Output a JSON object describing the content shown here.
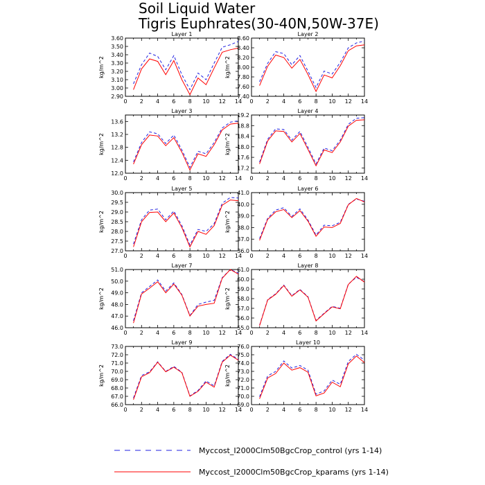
{
  "title_line1": "Soil Liquid Water",
  "title_line2": "Tigris Euphrates(30-40N,50W-37E)",
  "legend": {
    "series1": "Myccost_I2000Clm50BgcCrop_control (yrs 1-14)",
    "series2": "Myccost_I2000Clm50BgcCrop_kparams (yrs 1-14)"
  },
  "colors": {
    "control": "#1f1fe0",
    "kparams": "#ff0000"
  },
  "chart_data": [
    {
      "type": "line",
      "title": "Layer 1",
      "ylabel": "kg/m^2",
      "xlim": [
        0,
        14
      ],
      "ylim": [
        2.9,
        3.6
      ],
      "xticks": [
        0,
        2,
        4,
        6,
        8,
        10,
        12,
        14
      ],
      "yticks": [
        "2.90",
        "3.00",
        "3.10",
        "3.20",
        "3.30",
        "3.40",
        "3.50",
        "3.60"
      ],
      "x": [
        1,
        2,
        3,
        4,
        5,
        6,
        7,
        8,
        9,
        10,
        11,
        12,
        13,
        14
      ],
      "series": [
        {
          "name": "Myccost_I2000Clm50BgcCrop_control (yrs 1-14)",
          "values": [
            3.05,
            3.28,
            3.42,
            3.38,
            3.22,
            3.39,
            3.16,
            2.98,
            3.18,
            3.1,
            3.3,
            3.49,
            3.52,
            3.56
          ]
        },
        {
          "name": "Myccost_I2000Clm50BgcCrop_kparams (yrs 1-14)",
          "values": [
            2.98,
            3.23,
            3.35,
            3.32,
            3.16,
            3.33,
            3.1,
            2.92,
            3.12,
            3.04,
            3.24,
            3.43,
            3.46,
            3.48
          ]
        }
      ]
    },
    {
      "type": "line",
      "title": "Layer 2",
      "ylabel": "kg/m^2",
      "xlim": [
        0,
        14
      ],
      "ylim": [
        7.4,
        8.6
      ],
      "xticks": [
        0,
        2,
        4,
        6,
        8,
        10,
        12,
        14
      ],
      "yticks": [
        "7.40",
        "7.60",
        "7.80",
        "8.00",
        "8.20",
        "8.40",
        "8.60"
      ],
      "x": [
        1,
        2,
        3,
        4,
        5,
        6,
        7,
        8,
        9,
        10,
        11,
        12,
        13,
        14
      ],
      "series": [
        {
          "name": "Myccost_I2000Clm50BgcCrop_control (yrs 1-14)",
          "values": [
            7.7,
            8.08,
            8.32,
            8.28,
            8.05,
            8.24,
            7.92,
            7.58,
            7.92,
            7.86,
            8.1,
            8.4,
            8.5,
            8.54
          ]
        },
        {
          "name": "Myccost_I2000Clm50BgcCrop_kparams (yrs 1-14)",
          "values": [
            7.62,
            8.02,
            8.25,
            8.2,
            7.98,
            8.16,
            7.85,
            7.5,
            7.84,
            7.78,
            8.03,
            8.34,
            8.44,
            8.46
          ]
        }
      ]
    },
    {
      "type": "line",
      "title": "Layer 3",
      "ylabel": "kg/m^2",
      "xlim": [
        0,
        14
      ],
      "ylim": [
        12.0,
        13.8
      ],
      "xticks": [
        0,
        2,
        4,
        6,
        8,
        10,
        12,
        14
      ],
      "yticks": [
        "12.0",
        "12.4",
        "12.8",
        "13.2",
        "13.6"
      ],
      "x": [
        1,
        2,
        3,
        4,
        5,
        6,
        7,
        8,
        9,
        10,
        11,
        12,
        13,
        14
      ],
      "series": [
        {
          "name": "Myccost_I2000Clm50BgcCrop_control (yrs 1-14)",
          "values": [
            12.35,
            12.95,
            13.28,
            13.22,
            12.92,
            13.18,
            12.72,
            12.18,
            12.68,
            12.6,
            12.95,
            13.4,
            13.58,
            13.62
          ]
        },
        {
          "name": "Myccost_I2000Clm50BgcCrop_kparams (yrs 1-14)",
          "values": [
            12.28,
            12.88,
            13.18,
            13.15,
            12.85,
            13.1,
            12.65,
            12.1,
            12.6,
            12.52,
            12.88,
            13.34,
            13.52,
            13.55
          ]
        }
      ]
    },
    {
      "type": "line",
      "title": "Layer 4",
      "ylabel": "kg/m^2",
      "xlim": [
        0,
        14
      ],
      "ylim": [
        17.0,
        19.2
      ],
      "xticks": [
        0,
        2,
        4,
        6,
        8,
        10,
        12,
        14
      ],
      "yticks": [
        "17.2",
        "17.6",
        "18.0",
        "18.4",
        "18.8",
        "19.2"
      ],
      "x": [
        1,
        2,
        3,
        4,
        5,
        6,
        7,
        8,
        9,
        10,
        11,
        12,
        13,
        14
      ],
      "series": [
        {
          "name": "Myccost_I2000Clm50BgcCrop_control (yrs 1-14)",
          "values": [
            17.42,
            18.28,
            18.68,
            18.65,
            18.25,
            18.58,
            17.98,
            17.35,
            17.95,
            17.85,
            18.25,
            18.85,
            19.08,
            19.1
          ]
        },
        {
          "name": "Myccost_I2000Clm50BgcCrop_kparams (yrs 1-14)",
          "values": [
            17.35,
            18.22,
            18.6,
            18.58,
            18.18,
            18.5,
            17.9,
            17.28,
            17.88,
            17.78,
            18.18,
            18.78,
            19.0,
            19.02
          ]
        }
      ]
    },
    {
      "type": "line",
      "title": "Layer 5",
      "ylabel": "kg/m^2",
      "xlim": [
        0,
        14
      ],
      "ylim": [
        27.0,
        30.0
      ],
      "xticks": [
        0,
        2,
        4,
        6,
        8,
        10,
        12,
        14
      ],
      "yticks": [
        "27.0",
        "27.5",
        "28.0",
        "28.5",
        "29.0",
        "29.5",
        "30.0"
      ],
      "x": [
        1,
        2,
        3,
        4,
        5,
        6,
        7,
        8,
        9,
        10,
        11,
        12,
        13,
        14
      ],
      "series": [
        {
          "name": "Myccost_I2000Clm50BgcCrop_control (yrs 1-14)",
          "values": [
            27.35,
            28.6,
            29.1,
            29.15,
            28.6,
            29.05,
            28.3,
            27.3,
            28.1,
            28.0,
            28.4,
            29.45,
            29.75,
            29.72
          ]
        },
        {
          "name": "Myccost_I2000Clm50BgcCrop_kparams (yrs 1-14)",
          "values": [
            27.2,
            28.5,
            28.98,
            29.0,
            28.5,
            28.95,
            28.2,
            27.2,
            28.0,
            27.85,
            28.3,
            29.35,
            29.62,
            29.58
          ]
        }
      ]
    },
    {
      "type": "line",
      "title": "Layer 6",
      "ylabel": "kg/m^2",
      "xlim": [
        0,
        14
      ],
      "ylim": [
        36.0,
        41.0
      ],
      "xticks": [
        0,
        2,
        4,
        6,
        8,
        10,
        12,
        14
      ],
      "yticks": [
        "36.0",
        "37.0",
        "38.0",
        "39.0",
        "40.0",
        "41.0"
      ],
      "x": [
        1,
        2,
        3,
        4,
        5,
        6,
        7,
        8,
        9,
        10,
        11,
        12,
        13,
        14
      ],
      "series": [
        {
          "name": "Myccost_I2000Clm50BgcCrop_control (yrs 1-14)",
          "values": [
            37.05,
            38.8,
            39.5,
            39.7,
            38.95,
            39.6,
            38.65,
            37.35,
            38.2,
            38.15,
            38.45,
            40.0,
            40.45,
            40.25
          ]
        },
        {
          "name": "Myccost_I2000Clm50BgcCrop_kparams (yrs 1-14)",
          "values": [
            36.9,
            38.7,
            39.35,
            39.55,
            38.85,
            39.45,
            38.55,
            37.25,
            38.05,
            38.0,
            38.35,
            39.95,
            40.5,
            40.2
          ]
        }
      ]
    },
    {
      "type": "line",
      "title": "Layer 7",
      "ylabel": "kg/m^2",
      "xlim": [
        0,
        14
      ],
      "ylim": [
        46.0,
        51.0
      ],
      "xticks": [
        0,
        2,
        4,
        6,
        8,
        10,
        12,
        14
      ],
      "yticks": [
        "46.0",
        "47.0",
        "48.0",
        "49.0",
        "50.0",
        "51.0"
      ],
      "x": [
        1,
        2,
        3,
        4,
        5,
        6,
        7,
        8,
        9,
        10,
        11,
        12,
        13,
        14
      ],
      "series": [
        {
          "name": "Myccost_I2000Clm50BgcCrop_control (yrs 1-14)",
          "values": [
            46.6,
            49.0,
            49.55,
            50.1,
            49.15,
            49.85,
            48.85,
            47.05,
            48.0,
            48.2,
            48.35,
            50.3,
            51.0,
            50.7
          ]
        },
        {
          "name": "Myccost_I2000Clm50BgcCrop_kparams (yrs 1-14)",
          "values": [
            46.4,
            48.9,
            49.4,
            49.95,
            49.0,
            49.75,
            48.8,
            47.0,
            47.85,
            48.0,
            48.1,
            50.25,
            51.0,
            50.6
          ]
        }
      ]
    },
    {
      "type": "line",
      "title": "Layer 8",
      "ylabel": "kg/m^2",
      "xlim": [
        0,
        14
      ],
      "ylim": [
        55.0,
        61.0
      ],
      "xticks": [
        0,
        2,
        4,
        6,
        8,
        10,
        12,
        14
      ],
      "yticks": [
        "55.0",
        "56.0",
        "57.0",
        "58.0",
        "59.0",
        "60.0",
        "61.0"
      ],
      "x": [
        1,
        2,
        3,
        4,
        5,
        6,
        7,
        8,
        9,
        10,
        11,
        12,
        13,
        14
      ],
      "series": [
        {
          "name": "Myccost_I2000Clm50BgcCrop_control (yrs 1-14)",
          "values": [
            55.25,
            57.9,
            58.5,
            59.4,
            58.3,
            58.95,
            58.2,
            55.75,
            56.5,
            57.2,
            57.0,
            59.5,
            60.2,
            59.75
          ]
        },
        {
          "name": "Myccost_I2000Clm50BgcCrop_kparams (yrs 1-14)",
          "values": [
            55.2,
            57.85,
            58.45,
            59.35,
            58.25,
            58.9,
            58.15,
            55.7,
            56.45,
            57.15,
            56.95,
            59.45,
            60.3,
            59.7
          ]
        }
      ]
    },
    {
      "type": "line",
      "title": "Layer 9",
      "ylabel": "kg/m^2",
      "xlim": [
        0,
        14
      ],
      "ylim": [
        66.0,
        73.0
      ],
      "xticks": [
        0,
        2,
        4,
        6,
        8,
        10,
        12,
        14
      ],
      "yticks": [
        "66.0",
        "67.0",
        "68.0",
        "69.0",
        "70.0",
        "71.0",
        "72.0",
        "73.0"
      ],
      "x": [
        1,
        2,
        3,
        4,
        5,
        6,
        7,
        8,
        9,
        10,
        11,
        12,
        13,
        14
      ],
      "series": [
        {
          "name": "Myccost_I2000Clm50BgcCrop_control (yrs 1-14)",
          "values": [
            66.8,
            69.5,
            69.95,
            71.15,
            70.0,
            70.6,
            69.9,
            67.05,
            67.7,
            68.85,
            68.25,
            71.2,
            72.05,
            71.45
          ]
        },
        {
          "name": "Myccost_I2000Clm50BgcCrop_kparams (yrs 1-14)",
          "values": [
            66.6,
            69.35,
            69.85,
            71.1,
            69.95,
            70.5,
            69.85,
            67.0,
            67.6,
            68.7,
            68.1,
            71.1,
            71.95,
            71.35
          ]
        }
      ]
    },
    {
      "type": "line",
      "title": "Layer 10",
      "ylabel": "kg/m^2",
      "xlim": [
        0,
        14
      ],
      "ylim": [
        69.0,
        76.0
      ],
      "xticks": [
        0,
        2,
        4,
        6,
        8,
        10,
        12,
        14
      ],
      "yticks": [
        "69.0",
        "70.0",
        "71.0",
        "72.0",
        "73.0",
        "74.0",
        "75.0",
        "76.0"
      ],
      "x": [
        1,
        2,
        3,
        4,
        5,
        6,
        7,
        8,
        9,
        10,
        11,
        12,
        13,
        14
      ],
      "series": [
        {
          "name": "Myccost_I2000Clm50BgcCrop_control (yrs 1-14)",
          "values": [
            69.95,
            72.45,
            73.0,
            74.25,
            73.4,
            73.7,
            73.15,
            70.25,
            70.65,
            71.95,
            71.45,
            74.2,
            75.05,
            74.35
          ]
        },
        {
          "name": "Myccost_I2000Clm50BgcCrop_kparams (yrs 1-14)",
          "values": [
            69.7,
            72.2,
            72.75,
            74.0,
            73.15,
            73.45,
            72.9,
            70.05,
            70.4,
            71.7,
            71.15,
            73.9,
            74.85,
            74.05
          ]
        }
      ]
    }
  ]
}
